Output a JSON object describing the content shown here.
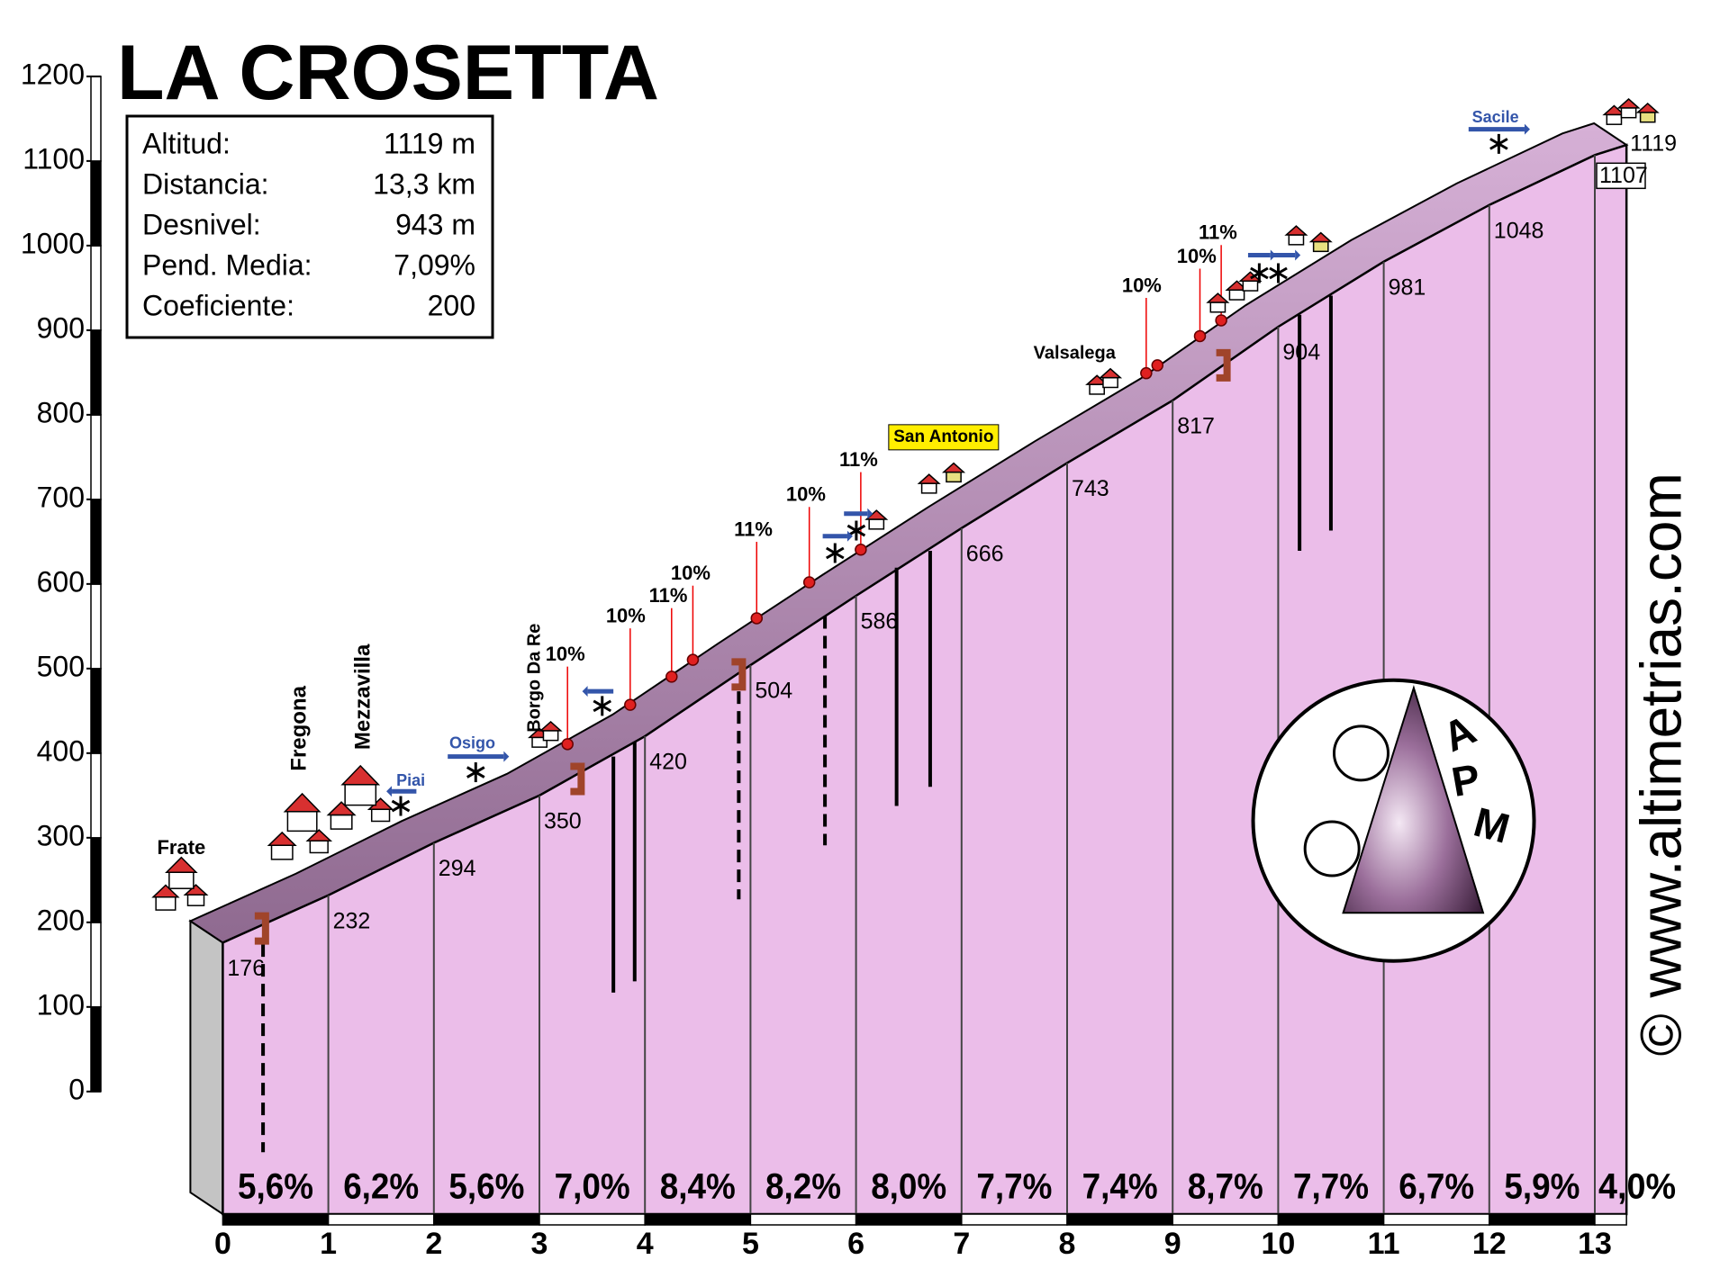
{
  "chart_data": {
    "type": "area",
    "title": "LA CROSETTA",
    "x": [
      0,
      1,
      2,
      3,
      4,
      5,
      6,
      7,
      8,
      9,
      10,
      11,
      12,
      13,
      13.3
    ],
    "values": [
      176,
      232,
      294,
      350,
      420,
      504,
      586,
      666,
      743,
      817,
      904,
      981,
      1048,
      1107,
      1119
    ],
    "xlim": [
      0,
      13.3
    ],
    "xticks": [
      0,
      1,
      2,
      3,
      4,
      5,
      6,
      7,
      8,
      9,
      10,
      11,
      12,
      13
    ],
    "ylim": [
      0,
      1200
    ],
    "yticks": [
      0,
      100,
      200,
      300,
      400,
      500,
      600,
      700,
      800,
      900,
      1000,
      1100,
      1200
    ],
    "color": "#ebbde9",
    "gradient_labels": [
      "5,6%",
      "6,2%",
      "5,6%",
      "7,0%",
      "8,4%",
      "8,2%",
      "8,0%",
      "7,7%",
      "7,4%",
      "8,7%",
      "7,7%",
      "6,7%",
      "5,9%",
      "4,0%"
    ],
    "info": [
      {
        "label": "Altitud:",
        "value": "1119 m"
      },
      {
        "label": "Distancia:",
        "value": "13,3 km"
      },
      {
        "label": "Desnivel:",
        "value": "943 m"
      },
      {
        "label": "Pend. Media:",
        "value": "7,09%"
      },
      {
        "label": "Coeficiente:",
        "value": "200"
      }
    ],
    "places": [
      "Frate",
      "Fregona",
      "Mezzavilla",
      "Piai",
      "Osigo",
      "Borgo Da Re",
      "San Antonio",
      "Valsalega",
      "Sacile"
    ],
    "grade_marks": [
      "10%",
      "10%",
      "11%",
      "10%",
      "11%",
      "10%",
      "11%",
      "10%",
      "10%",
      "11%"
    ],
    "logo": [
      "A",
      "P",
      "M"
    ],
    "watermark": "© www.altimetrias.com"
  }
}
